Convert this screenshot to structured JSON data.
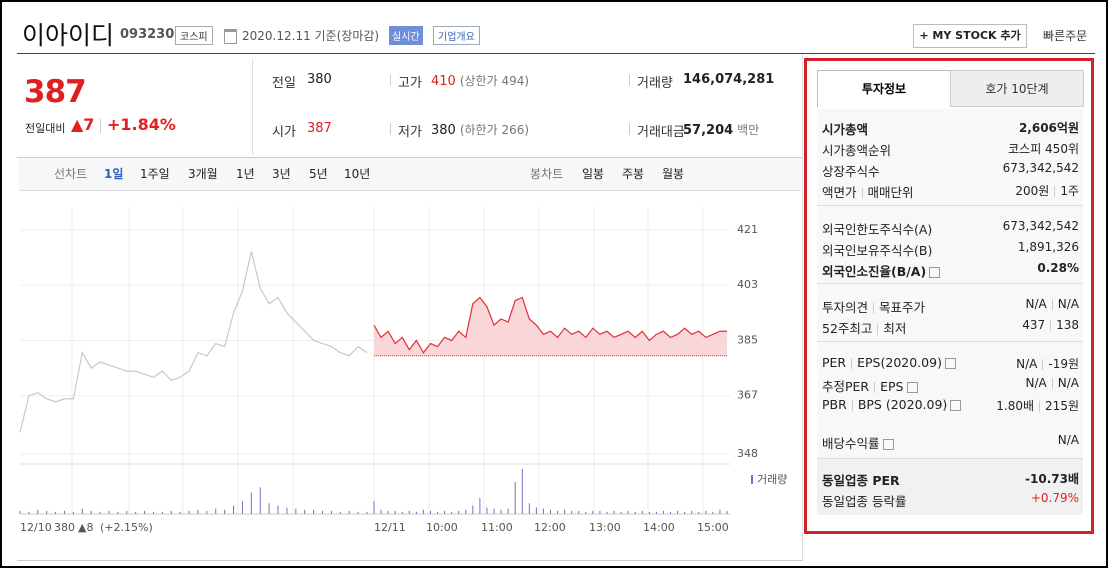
{
  "header": {
    "name": "이아이디",
    "code": "093230",
    "market": "코스피",
    "date": "2020.12.11 기준(장마감)",
    "live": "실시간",
    "company_info": "기업개요",
    "my_stock": "+ MY STOCK 추가",
    "quick_order": "빠른주문"
  },
  "price": {
    "current": "387",
    "change_label": "전일대비",
    "change": "▲7",
    "rate": "+1.84%"
  },
  "summary": [
    {
      "label": "전일",
      "value": "380"
    },
    {
      "label": "고가",
      "value": "410",
      "note": "(상한가 494)",
      "color": "#e02020"
    },
    {
      "label": "거래량",
      "value": "146,074,281"
    },
    {
      "label": "시가",
      "value": "387",
      "color": "#e02020"
    },
    {
      "label": "저가",
      "value": "380",
      "note": "(하한가 266)"
    },
    {
      "label": "거래대금",
      "value": "57,204",
      "note": "백만"
    }
  ],
  "chart_tabs": {
    "line_chart": "선차트",
    "periods": [
      "1일",
      "1주일",
      "3개월",
      "1년",
      "3년",
      "5년",
      "10년"
    ],
    "candle_chart": "봉차트",
    "candles": [
      "일봉",
      "주봉",
      "월봉"
    ]
  },
  "chart_data": {
    "type": "line",
    "ylim": [
      348,
      421
    ],
    "yticks": [
      421,
      403,
      385,
      367,
      348
    ],
    "grid": true,
    "xtick_labels": [
      "12/11",
      "10:00",
      "11:00",
      "12:00",
      "13:00",
      "14:00",
      "15:00"
    ],
    "prev_close": {
      "date": "12/10",
      "price": 380,
      "change": "▲8",
      "rate": "(+2.15%)"
    },
    "volume_label": "거래량",
    "series": [
      {
        "name": "12/10",
        "color": "#c8c8c8",
        "values": [
          355,
          367,
          368,
          366,
          365,
          366,
          366,
          381,
          376,
          378,
          377,
          376,
          375,
          375,
          374,
          373,
          375,
          372,
          373,
          375,
          381,
          380,
          384,
          383,
          394,
          401,
          414,
          402,
          397,
          399,
          394,
          391,
          388,
          385,
          384,
          383,
          381,
          380,
          383,
          381
        ],
        "volume": [
          3,
          2,
          4,
          3,
          2,
          3,
          2,
          5,
          3,
          2,
          3,
          2,
          3,
          2,
          3,
          2,
          2,
          3,
          2,
          3,
          4,
          3,
          5,
          4,
          8,
          12,
          20,
          25,
          10,
          8,
          6,
          5,
          4,
          4,
          3,
          3,
          2,
          3,
          2,
          2
        ]
      },
      {
        "name": "12/11",
        "color": "#e0303a",
        "values": [
          390,
          386,
          388,
          384,
          386,
          382,
          385,
          381,
          384,
          383,
          386,
          385,
          388,
          386,
          397,
          399,
          396,
          390,
          392,
          391,
          398,
          399,
          392,
          390,
          387,
          388,
          386,
          389,
          387,
          388,
          386,
          389,
          387,
          388,
          386,
          387,
          388,
          386,
          388,
          385,
          387,
          388,
          386,
          387,
          389,
          387,
          388,
          386,
          387,
          388,
          388
        ],
        "volume": [
          12,
          4,
          3,
          3,
          2,
          3,
          2,
          4,
          3,
          2,
          3,
          2,
          3,
          4,
          8,
          15,
          6,
          5,
          4,
          5,
          30,
          42,
          10,
          6,
          5,
          4,
          3,
          4,
          3,
          3,
          2,
          3,
          3,
          2,
          3,
          2,
          3,
          2,
          3,
          2,
          2,
          3,
          2,
          3,
          2,
          3,
          2,
          3,
          2,
          4,
          3
        ]
      }
    ]
  },
  "info_tabs": [
    "투자정보",
    "호가 10단계"
  ],
  "info": [
    [
      {
        "label": [
          "시가총액"
        ],
        "value": [
          "2,606억원"
        ],
        "strong": true
      },
      {
        "label": [
          "시가총액순위"
        ],
        "value": [
          "코스피 450위"
        ]
      },
      {
        "label": [
          "상장주식수"
        ],
        "value": [
          "673,342,542"
        ]
      },
      {
        "label": [
          "액면가",
          "매매단위"
        ],
        "value": [
          "200원",
          "1주"
        ]
      }
    ],
    [
      {
        "label": [
          "외국인한도주식수(A)"
        ],
        "value": [
          "673,342,542"
        ]
      },
      {
        "label": [
          "외국인보유주식수(B)"
        ],
        "value": [
          "1,891,326"
        ]
      },
      {
        "label": [
          "외국인소진율(B/A)"
        ],
        "value": [
          "0.28%"
        ],
        "strong": true,
        "help": true
      }
    ],
    [
      {
        "label": [
          "투자의견",
          "목표주가"
        ],
        "value": [
          "N/A",
          "N/A"
        ]
      },
      {
        "label": [
          "52주최고",
          "최저"
        ],
        "value": [
          "437",
          "138"
        ]
      }
    ],
    [
      {
        "label": [
          "PER",
          "EPS(2020.09)"
        ],
        "value": [
          "N/A",
          "-19원"
        ],
        "help": true
      },
      {
        "label": [
          "추정PER",
          "EPS"
        ],
        "value": [
          "N/A",
          "N/A"
        ],
        "help": true
      },
      {
        "label": [
          "PBR",
          "BPS (2020.09)"
        ],
        "value": [
          "1.80배",
          "215원"
        ],
        "help": true
      },
      {
        "label": [
          "배당수익률"
        ],
        "value": [
          "N/A"
        ],
        "help": true
      }
    ],
    [
      {
        "label": [
          "동일업종 PER"
        ],
        "value": [
          "-10.73배"
        ],
        "strong": true
      },
      {
        "label": [
          "동일업종 등락률"
        ],
        "value": [
          "+0.79%"
        ],
        "color": "#e02020"
      }
    ]
  ]
}
